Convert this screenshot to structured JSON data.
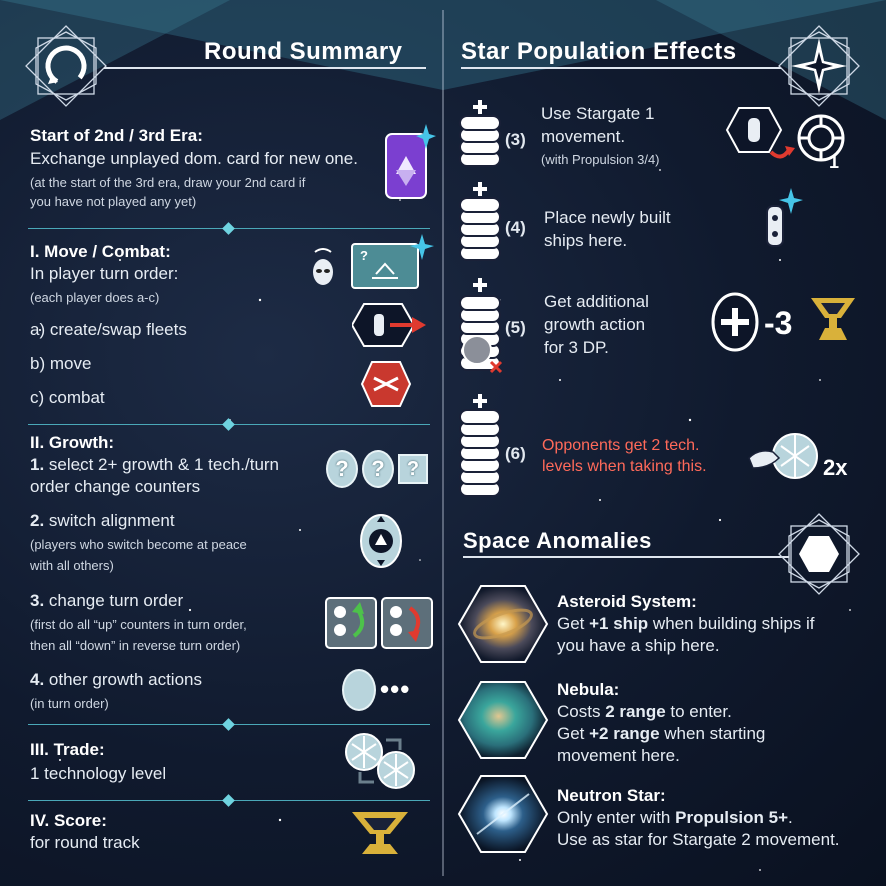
{
  "round_summary": {
    "title": "Round Summary",
    "start_era": {
      "title": "Start of 2nd / 3rd Era:",
      "line": "Exchange unplayed dom. card for new one.",
      "note1": "(at the start of the 3rd era, draw your 2nd card if",
      "note2": "you have not played any yet)"
    },
    "move_combat": {
      "title": "I. Move / Combat:",
      "line": "In player turn order:",
      "note": "(each player does a-c)",
      "a": "a) create/swap fleets",
      "b": "b) move",
      "c": "c) combat",
      "card_mark": "?"
    },
    "growth": {
      "title": "II. Growth:",
      "s1_num": "1.",
      "s1_line1": " select 2+ growth & 1 tech./turn",
      "s1_line2": "order change counters",
      "s2_num": "2.",
      "s2_line": " switch alignment",
      "s2_note1": "(players who switch become at peace",
      "s2_note2": "with all others)",
      "s3_num": "3.",
      "s3_line": " change turn order",
      "s3_note1": "(first do all “up” counters in turn order,",
      "s3_note2": "then all “down” in reverse turn order)",
      "s4_num": "4.",
      "s4_line": " other growth actions",
      "s4_note": "(in turn order)",
      "q": "?",
      "dots": "•••"
    },
    "trade": {
      "title": "III. Trade:",
      "line": "1 technology level"
    },
    "score": {
      "title": "IV. Score:",
      "line": "for round track"
    }
  },
  "star_population": {
    "title": "Star Population Effects",
    "rows": [
      {
        "num": "(3)",
        "line1": "Use Stargate 1",
        "line2": "movement.",
        "note": "(with Propulsion 3/4)"
      },
      {
        "num": "(4)",
        "line1": "Place newly built",
        "line2": "ships here."
      },
      {
        "num": "(5)",
        "line1": "Get additional",
        "line2": "growth action",
        "line3": "for 3 DP."
      },
      {
        "num": "(6)",
        "line1": "Opponents get 2 tech.",
        "line2": "levels when taking this."
      }
    ],
    "stargate_num": "1",
    "dp_cost": "-3",
    "multiplier": "2x"
  },
  "space_anomalies": {
    "title": "Space Anomalies",
    "asteroid": {
      "title": "Asteroid System:",
      "l1a": "Get ",
      "l1b": "+1 ship",
      "l1c": " when building ships if",
      "l2": "you have a ship here."
    },
    "nebula": {
      "title": "Nebula:",
      "l1a": "Costs ",
      "l1b": "2 range",
      "l1c": " to enter.",
      "l2a": "Get ",
      "l2b": "+2 range",
      "l2c": " when starting",
      "l3": "movement here."
    },
    "neutron": {
      "title": "Neutron Star:",
      "l1a": "Only enter with ",
      "l1b": "Propulsion 5+",
      "l1c": ".",
      "l2": "Use as star for Stargate 2 movement."
    }
  },
  "colors": {
    "accent_cyan": "#6fd3e0",
    "red_text": "#ff6a5a",
    "gold": "#d9b13a",
    "card_purple": "#7b3fd0"
  }
}
